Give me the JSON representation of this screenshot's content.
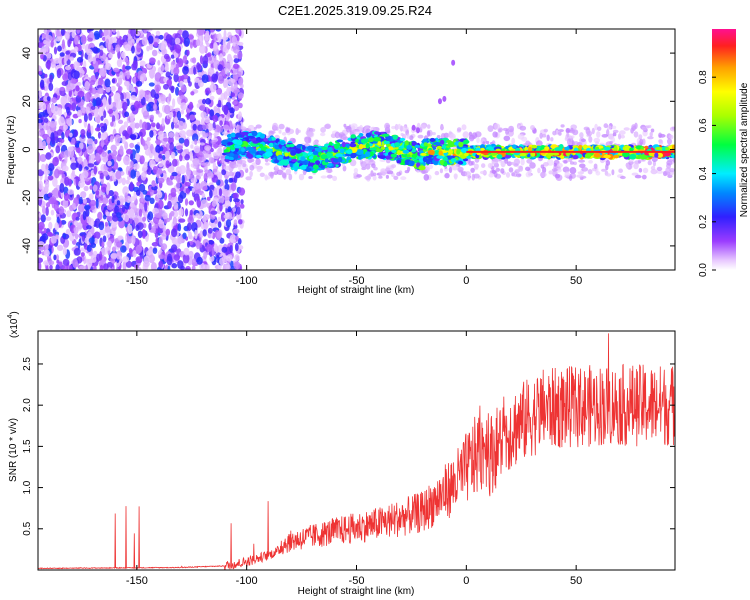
{
  "chart_data": [
    {
      "type": "heatmap",
      "title": "C2E1.2025.319.09.25.R24",
      "xlabel": "Height of straight line (km)",
      "ylabel": "Frequency (Hz)",
      "xlim": [
        -195,
        95
      ],
      "ylim": [
        -50,
        50
      ],
      "xticks": [
        -150,
        -100,
        -50,
        0,
        50
      ],
      "yticks": [
        -40,
        -20,
        0,
        20,
        40
      ],
      "colorbar": {
        "label": "Normalized spectral amplitude",
        "range": [
          0,
          1
        ],
        "ticks": [
          "0.0",
          "0.2",
          "0.4",
          "0.6",
          "0.8"
        ]
      },
      "features": {
        "noise_region_x": [
          -195,
          -110
        ],
        "signal_band_center_hz": -1,
        "signal_onset_x": -110,
        "strong_line_from_x": 0
      }
    },
    {
      "type": "line",
      "series_name": "SNR",
      "xlabel": "Height of straight line (km)",
      "ylabel": "SNR (10 * v/v)",
      "multiplier_label": "(x10^4)",
      "multiplier_base": "(x10",
      "multiplier_exp": "4",
      "xlim": [
        -195,
        95
      ],
      "ylim": [
        0,
        2.9
      ],
      "xticks": [
        -150,
        -100,
        -50,
        0,
        50
      ],
      "yticks": [
        "0.5",
        "1.0",
        "1.5",
        "2.0",
        "2.5"
      ],
      "color": "#ee3333",
      "trend_points": [
        [
          -195,
          0.02
        ],
        [
          -130,
          0.03
        ],
        [
          -110,
          0.05
        ],
        [
          -100,
          0.1
        ],
        [
          -90,
          0.18
        ],
        [
          -80,
          0.3
        ],
        [
          -60,
          0.4
        ],
        [
          -40,
          0.48
        ],
        [
          -20,
          0.6
        ],
        [
          -5,
          0.9
        ],
        [
          5,
          1.2
        ],
        [
          20,
          1.7
        ],
        [
          35,
          1.95
        ],
        [
          60,
          2.0
        ],
        [
          95,
          2.0
        ]
      ]
    }
  ]
}
